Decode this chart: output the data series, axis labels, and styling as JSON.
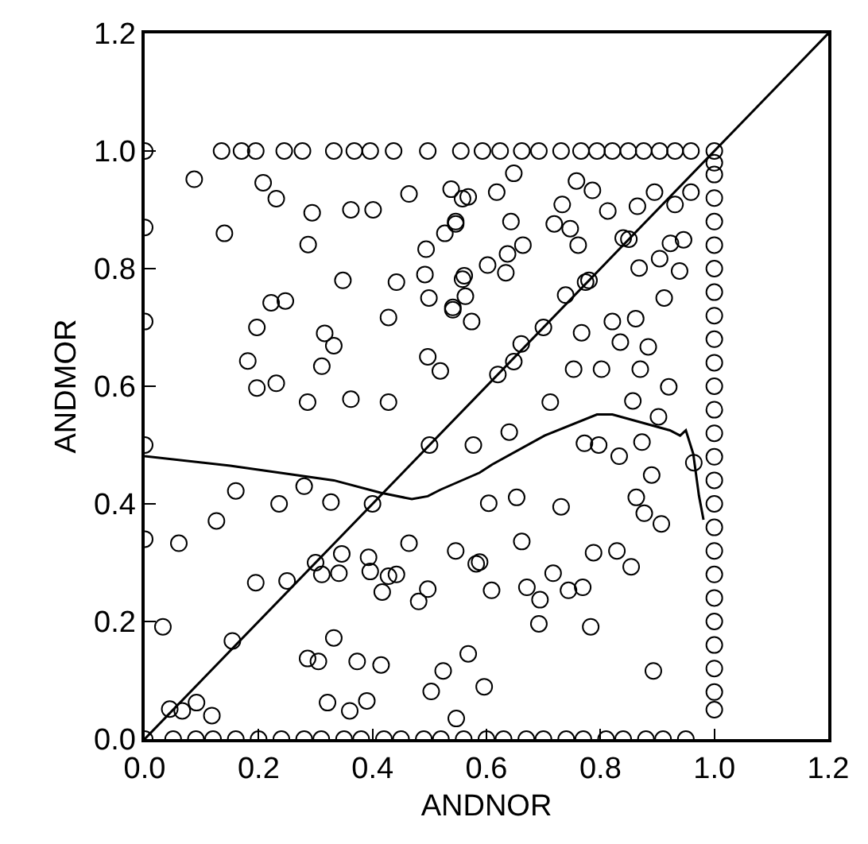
{
  "chart_data": {
    "type": "scatter",
    "xlabel": "ANDNOR",
    "ylabel": "ANDMOR",
    "xlim": [
      0,
      1.2
    ],
    "ylim": [
      0,
      1.2
    ],
    "xticks": [
      {
        "value": 0,
        "label": "0.0"
      },
      0.2,
      0.4,
      0.6,
      0.8,
      {
        "value": 1,
        "label": "1.0"
      },
      1.2
    ],
    "yticks": [
      {
        "value": 0,
        "label": "0.0"
      },
      0.2,
      0.4,
      0.6,
      0.8,
      {
        "value": 1,
        "label": "1.0"
      },
      1.2
    ],
    "series": [
      {
        "color": "#000000",
        "marker": "circle",
        "x": [
          0.087,
          0.14,
          0.208,
          0.231,
          0.294,
          0.362,
          0.401,
          0.287,
          0.348,
          0.442,
          0.222,
          0.247,
          0.197,
          0.181,
          0.197,
          0.231,
          0.286,
          0.362,
          0.428,
          0.311,
          0.332,
          0.316,
          0.428,
          0.494,
          0.492,
          0.499,
          0.497,
          0.519,
          0.464,
          0.538,
          0.558,
          0.527,
          0.546,
          0.541,
          0.558,
          0.574,
          0.568,
          0.618,
          0.648,
          0.758,
          0.786,
          0.546,
          0.643,
          0.664,
          0.719,
          0.747,
          0.761,
          0.733,
          0.813,
          0.865,
          0.895,
          0.931,
          0.959,
          0.84,
          0.923,
          0.946,
          0.637,
          0.602,
          0.634,
          0.561,
          0.563,
          0.541,
          0.774,
          0.739,
          0.868,
          0.904,
          0.939,
          0.912,
          0.821,
          0.862,
          0.767,
          0.661,
          0.835,
          0.884,
          0.753,
          0.802,
          0.87,
          0.648,
          0.712,
          0.857,
          0.92,
          0.032,
          0.06,
          0.126,
          0.16,
          0.236,
          0.28,
          0.327,
          0.195,
          0.25,
          0.346,
          0.311,
          0.341,
          0.393,
          0.396,
          0.417,
          0.428,
          0.442,
          0.464,
          0.481,
          0.497,
          0.546,
          0.582,
          0.524,
          0.568,
          0.503,
          0.154,
          0.286,
          0.305,
          0.332,
          0.373,
          0.415,
          0.39,
          0.321,
          0.36,
          0.091,
          0.118,
          0.066,
          0.044,
          0.577,
          0.64,
          0.772,
          0.797,
          0.833,
          0.873,
          0.902,
          0.89,
          0.964,
          0.604,
          0.653,
          0.731,
          0.863,
          0.877,
          0.907,
          0.662,
          0.788,
          0.829,
          0.854,
          0.588,
          0.609,
          0.671,
          0.694,
          0.717,
          0.744,
          0.769,
          0.692,
          0.783,
          0.893,
          0.596,
          0.547,
          0.3,
          0.4,
          0.5,
          0.62,
          0.7,
          0.78,
          0.85,
          0,
          0,
          0,
          0,
          0,
          0.135,
          0.17,
          0.195,
          0.245,
          0.277,
          0.332,
          0.368,
          0.396,
          0.437,
          0.497,
          0.555,
          0.593,
          0.624,
          0.662,
          0.692,
          0.731,
          0.766,
          0.794,
          0.821,
          0.849,
          0.876,
          0.904,
          0.931,
          0.959,
          1,
          0,
          0.05,
          0.09,
          0.12,
          0.16,
          0.2,
          0.24,
          0.28,
          0.31,
          0.35,
          0.38,
          0.42,
          0.45,
          0.49,
          0.52,
          0.56,
          0.6,
          0.63,
          0.67,
          0.7,
          0.74,
          0.77,
          0.81,
          0.84,
          0.88,
          0.91,
          0.95,
          1,
          1,
          1,
          1,
          1,
          1,
          1,
          1,
          1,
          1,
          1,
          1,
          1,
          1,
          1,
          1,
          1,
          1,
          1,
          1,
          1,
          1,
          1,
          1,
          1
        ],
        "values": [
          0.952,
          0.86,
          0.946,
          0.919,
          0.895,
          0.9,
          0.9,
          0.841,
          0.78,
          0.777,
          0.742,
          0.745,
          0.7,
          0.643,
          0.597,
          0.605,
          0.573,
          0.578,
          0.573,
          0.634,
          0.669,
          0.69,
          0.717,
          0.833,
          0.79,
          0.75,
          0.65,
          0.626,
          0.927,
          0.935,
          0.919,
          0.86,
          0.88,
          0.73,
          0.782,
          0.71,
          0.922,
          0.93,
          0.962,
          0.949,
          0.933,
          0.876,
          0.88,
          0.84,
          0.876,
          0.868,
          0.84,
          0.909,
          0.898,
          0.906,
          0.93,
          0.909,
          0.93,
          0.852,
          0.843,
          0.849,
          0.825,
          0.806,
          0.793,
          0.788,
          0.753,
          0.734,
          0.777,
          0.755,
          0.801,
          0.817,
          0.796,
          0.75,
          0.71,
          0.715,
          0.691,
          0.672,
          0.675,
          0.667,
          0.629,
          0.629,
          0.629,
          0.642,
          0.573,
          0.575,
          0.599,
          0.191,
          0.333,
          0.371,
          0.422,
          0.4,
          0.43,
          0.403,
          0.266,
          0.269,
          0.315,
          0.28,
          0.282,
          0.309,
          0.285,
          0.25,
          0.277,
          0.28,
          0.333,
          0.234,
          0.255,
          0.32,
          0.298,
          0.116,
          0.145,
          0.081,
          0.167,
          0.137,
          0.132,
          0.172,
          0.132,
          0.126,
          0.065,
          0.062,
          0.048,
          0.062,
          0.04,
          0.048,
          0.051,
          0.5,
          0.522,
          0.503,
          0.5,
          0.481,
          0.505,
          0.548,
          0.449,
          0.47,
          0.401,
          0.411,
          0.395,
          0.411,
          0.384,
          0.366,
          0.336,
          0.317,
          0.32,
          0.293,
          0.301,
          0.253,
          0.258,
          0.237,
          0.282,
          0.253,
          0.258,
          0.196,
          0.191,
          0.116,
          0.089,
          0.035,
          0.3,
          0.4,
          0.5,
          0.62,
          0.7,
          0.78,
          0.85,
          0.87,
          0.71,
          0.5,
          0.34,
          1,
          1,
          1,
          1,
          1,
          1,
          1,
          1,
          1,
          1,
          1,
          1,
          1,
          1,
          1,
          1,
          1,
          1,
          1,
          1,
          1,
          1,
          1,
          1,
          1,
          1,
          0,
          0,
          0,
          0,
          0,
          0,
          0,
          0,
          0,
          0,
          0,
          0,
          0,
          0,
          0,
          0,
          0,
          0,
          0,
          0,
          0,
          0,
          0,
          0,
          0,
          0,
          0,
          0.05,
          0.08,
          0.12,
          0.16,
          0.2,
          0.24,
          0.28,
          0.32,
          0.36,
          0.4,
          0.44,
          0.48,
          0.52,
          0.56,
          0.6,
          0.64,
          0.68,
          0.72,
          0.76,
          0.8,
          0.84,
          0.88,
          0.92,
          0.96,
          0.98
        ]
      },
      {
        "type": "line",
        "color": "#000000",
        "marker": "none",
        "x": [
          0,
          1.2
        ],
        "values": [
          0,
          1.2
        ]
      },
      {
        "type": "line",
        "color": "#000000",
        "marker": "none",
        "x": [
          0,
          0.15,
          0.332,
          0.414,
          0.469,
          0.497,
          0.519,
          0.588,
          0.61,
          0.702,
          0.794,
          0.821,
          0.922,
          0.94,
          0.95,
          0.963,
          0.973,
          0.981
        ],
        "values": [
          0.481,
          0.465,
          0.44,
          0.419,
          0.408,
          0.413,
          0.424,
          0.453,
          0.467,
          0.516,
          0.552,
          0.552,
          0.525,
          0.516,
          0.525,
          0.485,
          0.414,
          0.373
        ]
      }
    ]
  }
}
